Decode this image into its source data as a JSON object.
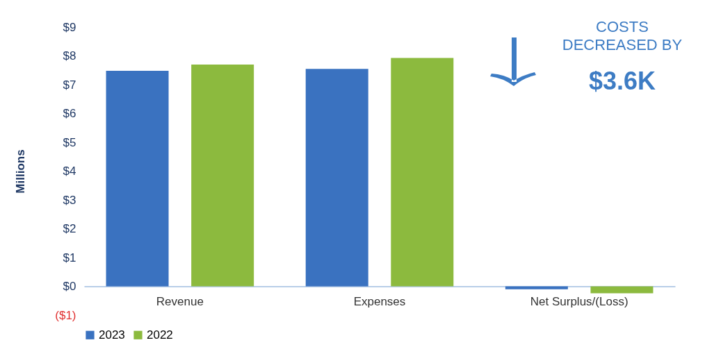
{
  "chart_data": {
    "type": "bar",
    "ylabel": "Millions",
    "categories": [
      "Revenue",
      "Expenses",
      "Net Surplus/(Loss)"
    ],
    "series": [
      {
        "name": "2023",
        "color": "#3a72c0",
        "values": [
          7.48,
          7.55,
          -0.1
        ]
      },
      {
        "name": "2022",
        "color": "#8cba3e",
        "values": [
          7.7,
          7.93,
          -0.24
        ]
      }
    ],
    "ylim": [
      -1,
      9
    ],
    "yticks": [
      {
        "value": -1,
        "label": "($1)"
      },
      {
        "value": 0,
        "label": "$0"
      },
      {
        "value": 1,
        "label": "$1"
      },
      {
        "value": 2,
        "label": "$2"
      },
      {
        "value": 3,
        "label": "$3"
      },
      {
        "value": 4,
        "label": "$4"
      },
      {
        "value": 5,
        "label": "$5"
      },
      {
        "value": 6,
        "label": "$6"
      },
      {
        "value": 7,
        "label": "$7"
      },
      {
        "value": 8,
        "label": "$8"
      },
      {
        "value": 9,
        "label": "$9"
      }
    ],
    "annotations": [
      "COSTS DECREASED BY",
      "$3.6K"
    ],
    "grid": false,
    "legend": "bottom"
  }
}
